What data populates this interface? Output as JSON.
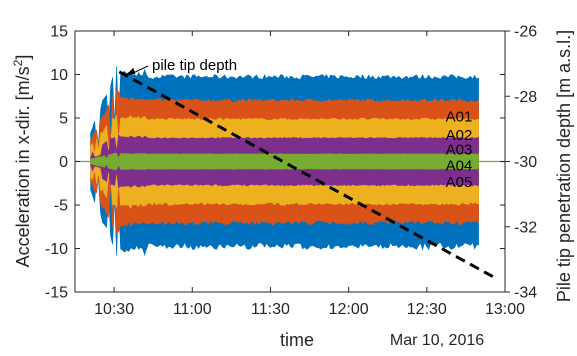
{
  "chart_data": {
    "type": "area",
    "xlabel": "time",
    "ylabel_left": "Acceleration in x-dir. [m/s²]",
    "ylabel_right": "Pile tip penetration depth [m a.s.l.]",
    "date_label": "Mar 10, 2016",
    "annotation": "pile tip depth",
    "x_ticks": [
      "10:30",
      "11:00",
      "11:30",
      "12:00",
      "12:30",
      "13:00"
    ],
    "xlim": [
      "10:15",
      "13:00"
    ],
    "y_left_ticks": [
      15,
      10,
      5,
      0,
      -5,
      -10,
      -15
    ],
    "ylim_left": [
      -15,
      15
    ],
    "y_right_ticks": [
      -26,
      -28,
      -30,
      -32,
      -34
    ],
    "ylim_right": [
      -34,
      -26
    ],
    "grid": false,
    "series": [
      {
        "name": "A01",
        "color": "#0072BD",
        "amplitude": 9.0
      },
      {
        "name": "A02",
        "color": "#D95319",
        "amplitude": 6.5
      },
      {
        "name": "A03",
        "color": "#EDB120",
        "amplitude": 4.5
      },
      {
        "name": "A04",
        "color": "#7E2F8E",
        "amplitude": 2.5
      },
      {
        "name": "A05",
        "color": "#77AC30",
        "amplitude": 0.8
      }
    ],
    "series_time_range": [
      "10:21",
      "12:50"
    ],
    "depth_line": {
      "time": [
        "10:32",
        "12:57"
      ],
      "depth": [
        -27.25,
        -33.6
      ],
      "style": "dashed",
      "color": "#000000"
    }
  }
}
